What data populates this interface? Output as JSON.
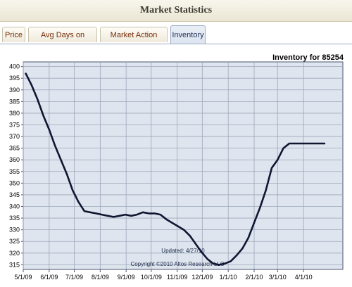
{
  "header": {
    "title": "Market Statistics"
  },
  "tabs": [
    {
      "label": "Price",
      "active": false
    },
    {
      "label": "Avg Days on Market",
      "active": false
    },
    {
      "label": "Market Action Index",
      "active": false
    },
    {
      "label": "Inventory",
      "active": true
    }
  ],
  "colors": {
    "plot_background": "#dfe5ee",
    "grid": "#9ba7ba",
    "line": "#101631",
    "active_tab": "#dde5f1",
    "tab_text": "#7a2d0a"
  },
  "chart_data": {
    "type": "line",
    "title": "Inventory for 85254",
    "xlabel": "",
    "ylabel": "",
    "ylim": [
      313,
      402
    ],
    "yticks": [
      315,
      320,
      325,
      330,
      335,
      340,
      345,
      350,
      355,
      360,
      365,
      370,
      375,
      380,
      385,
      390,
      395,
      400
    ],
    "xticks": [
      "5/1/09",
      "6/1/09",
      "7/1/09",
      "8/1/09",
      "9/1/09",
      "10/1/09",
      "11/1/09",
      "12/1/09",
      "1/1/10",
      "2/1/10",
      "3/1/10",
      "4/1/10"
    ],
    "xlim": [
      "5/1/09",
      "5/18/10"
    ],
    "grid": true,
    "annotations": [
      "Updated: 4/27/10",
      "Copyright ©2010 Altos Research LLC"
    ],
    "series": [
      {
        "x": [
          "5/4/09",
          "5/11/09",
          "5/18/09",
          "5/25/09",
          "6/1/09",
          "6/8/09",
          "6/15/09",
          "6/22/09",
          "6/29/09",
          "7/6/09",
          "7/13/09",
          "7/20/09",
          "7/27/09",
          "8/3/09",
          "8/10/09",
          "8/17/09",
          "8/24/09",
          "8/31/09",
          "9/7/09",
          "9/14/09",
          "9/21/09",
          "9/28/09",
          "10/5/09",
          "10/12/09",
          "10/19/09",
          "10/26/09",
          "11/2/09",
          "11/9/09",
          "11/16/09",
          "11/23/09",
          "11/30/09",
          "12/7/09",
          "12/14/09",
          "12/21/09",
          "12/28/09",
          "1/4/10",
          "1/11/10",
          "1/18/10",
          "1/25/10",
          "2/1/10",
          "2/8/10",
          "2/15/10",
          "2/22/10",
          "3/1/10",
          "3/8/10",
          "3/15/10",
          "3/22/10",
          "3/29/10",
          "4/5/10",
          "4/12/10",
          "4/19/10",
          "4/26/10"
        ],
        "values": [
          397,
          392,
          386,
          379,
          373,
          366,
          360,
          354,
          347,
          342,
          338,
          337.5,
          337,
          336.5,
          336,
          335.5,
          336,
          336.5,
          336,
          336.5,
          337.5,
          337,
          337,
          336.5,
          334.5,
          333,
          331.5,
          330,
          327.5,
          324,
          320.5,
          317.5,
          315.5,
          315,
          315.5,
          316.5,
          319,
          322,
          326.5,
          333,
          339.5,
          347,
          356.5,
          360,
          365,
          367,
          367,
          367,
          367,
          367,
          367,
          367
        ]
      }
    ]
  }
}
